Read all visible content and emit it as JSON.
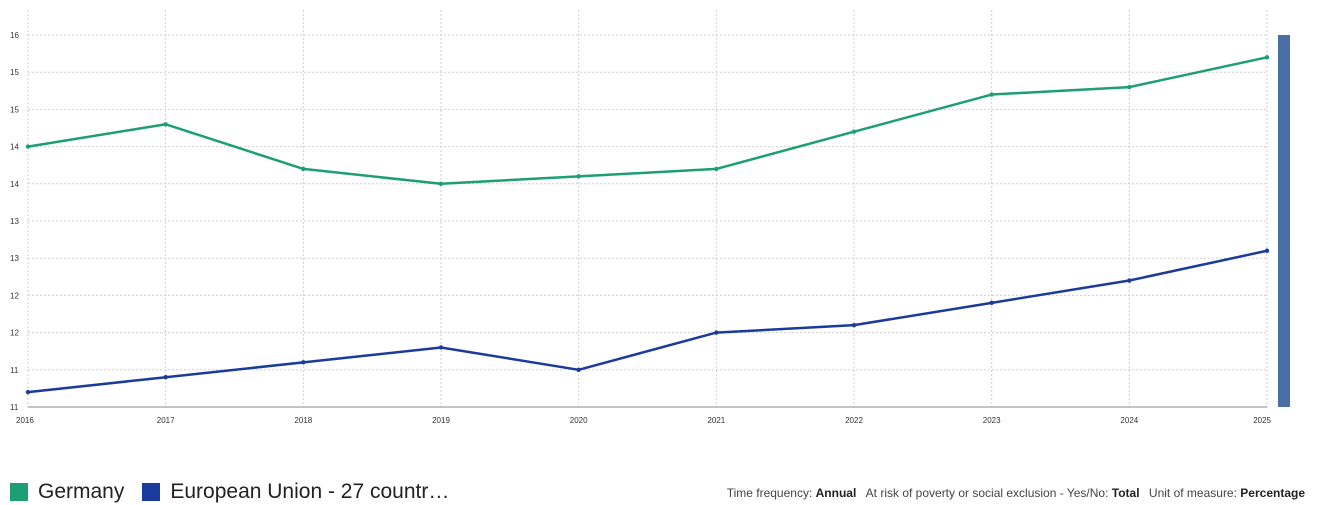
{
  "chart_data": {
    "type": "line",
    "x": [
      "2016",
      "2017",
      "2018",
      "2019",
      "2020",
      "2021",
      "2022",
      "2023",
      "2024",
      "2025"
    ],
    "y_tick_labels": [
      "16",
      "15",
      "15",
      "14",
      "14",
      "13",
      "13",
      "12",
      "12",
      "11",
      "11"
    ],
    "ylim": [
      11,
      16
    ],
    "grid": true,
    "series": [
      {
        "name": "Germany",
        "color": "#1e9e74",
        "values": [
          14.5,
          14.8,
          14.2,
          14.0,
          14.1,
          14.2,
          14.7,
          15.2,
          15.3,
          15.7
        ]
      },
      {
        "name": "European Union - 27 countr…",
        "color": "#1a3b9c",
        "values": [
          11.2,
          11.4,
          11.6,
          11.8,
          11.5,
          12.0,
          12.1,
          12.4,
          12.7,
          13.1
        ]
      }
    ],
    "legend_position": "bottom-left"
  },
  "scroll_indicator_color": "#4a6fa5",
  "filters": [
    {
      "key": "Time frequency:",
      "value": "Annual"
    },
    {
      "key": "At risk of poverty or social exclusion - Yes/No:",
      "value": "Total"
    },
    {
      "key": "Unit of measure:",
      "value": "Percentage"
    }
  ]
}
